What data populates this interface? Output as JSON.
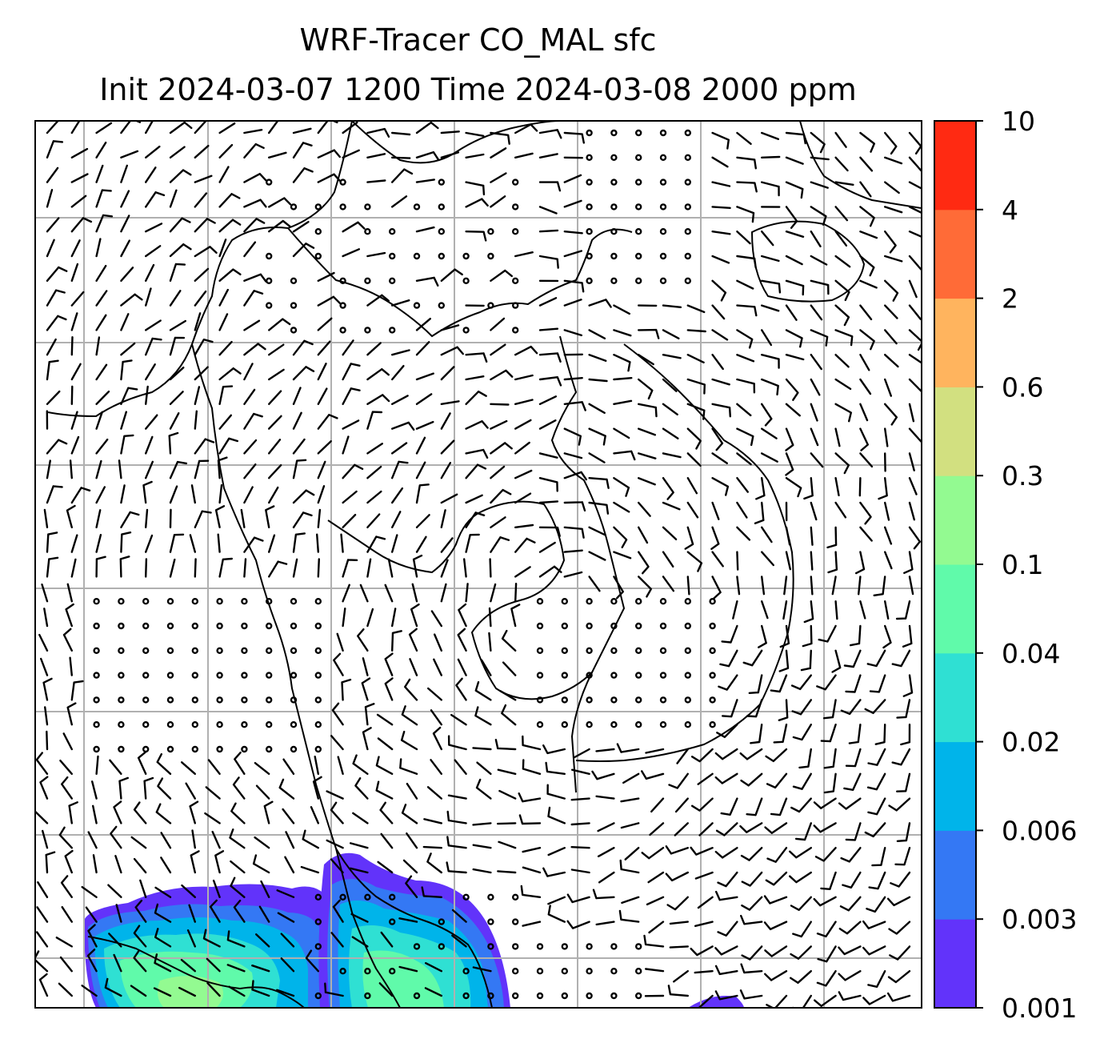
{
  "title_line1": "WRF-Tracer CO_MAL sfc",
  "title_line2": "Init 2024-03-07 1200 Time 2024-03-08 2000 ppm",
  "colorbar": {
    "levels": [
      "0.001",
      "0.003",
      "0.006",
      "0.02",
      "0.04",
      "0.1",
      "0.3",
      "0.6",
      "2",
      "4",
      "10"
    ],
    "colors": [
      "#6233fa",
      "#3478f4",
      "#00b4ea",
      "#2fe0d3",
      "#60faaa",
      "#93fa91",
      "#d2e080",
      "#ffb45e",
      "#ff6b37",
      "#ff2a12"
    ]
  },
  "map": {
    "field": "CO_MAL tracer concentration at surface",
    "unit": "ppm",
    "overlay": "wind barbs",
    "gridlines": true,
    "plume_location": "bottom-left and bottom-center of map"
  }
}
